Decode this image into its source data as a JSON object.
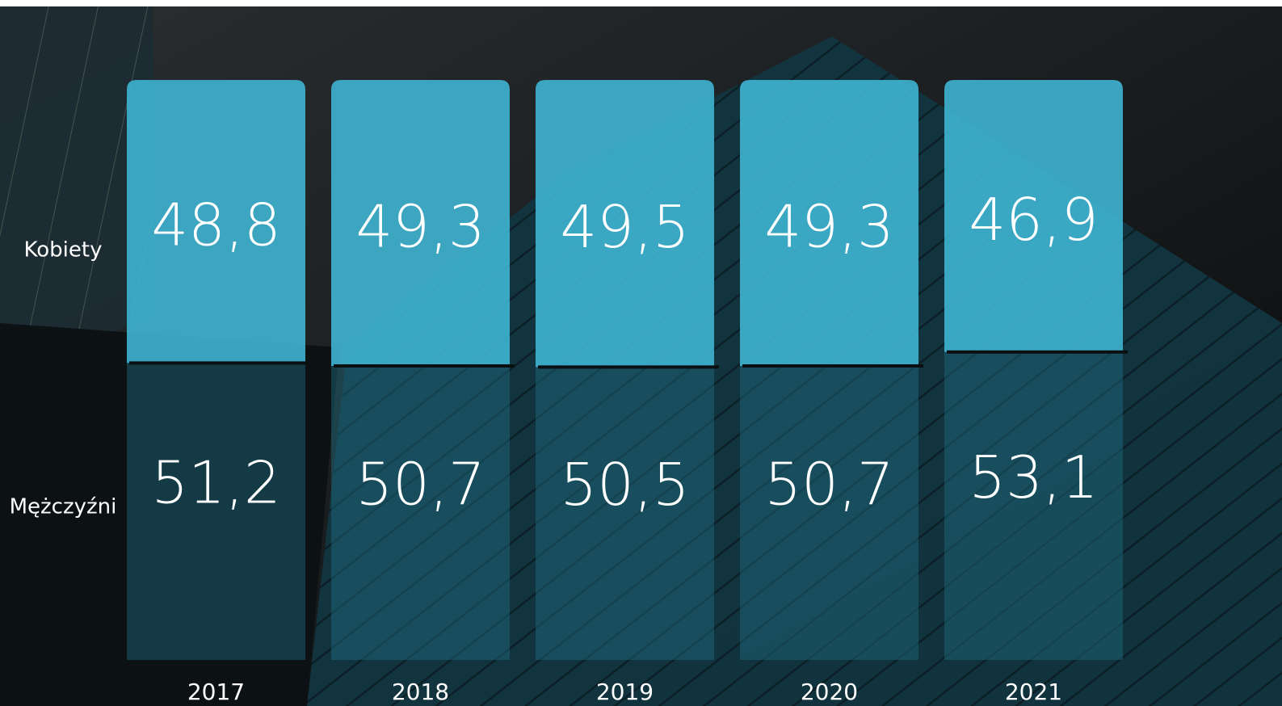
{
  "chart_data": {
    "type": "bar",
    "stacked": true,
    "categories": [
      "2017",
      "2018",
      "2019",
      "2020",
      "2021"
    ],
    "series": [
      {
        "name": "Kobiety",
        "values": [
          48.8,
          49.3,
          49.5,
          49.3,
          46.9
        ],
        "labels": [
          "48,8",
          "49,3",
          "49,5",
          "49,3",
          "46,9"
        ]
      },
      {
        "name": "Mężczyźni",
        "values": [
          51.2,
          50.7,
          50.5,
          50.7,
          53.1
        ],
        "labels": [
          "51,2",
          "50,7",
          "50,5",
          "50,7",
          "53,1"
        ]
      }
    ],
    "ylim": [
      0,
      100
    ],
    "grid": false,
    "legend": "left"
  },
  "colors": {
    "bar_top": "#3fb4d1",
    "bar_bottom_glass": "#1f6c80",
    "divider": "#0a0f12",
    "text": "#ffffff"
  }
}
